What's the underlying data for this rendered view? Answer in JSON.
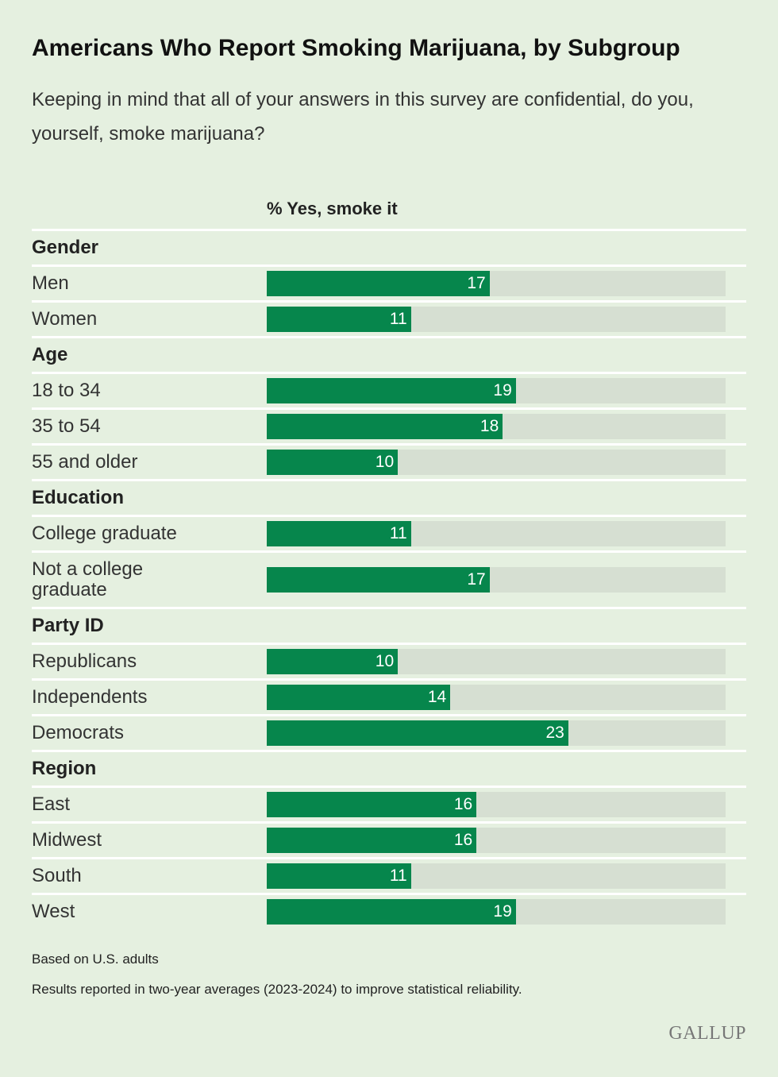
{
  "chart_data": {
    "type": "bar",
    "title": "Americans Who Report Smoking Marijuana, by Subgroup",
    "subtitle": "Keeping in mind that all of your answers in this survey are confidential, do you, yourself, smoke marijuana?",
    "column_label": "% Yes, smoke it",
    "bar_color": "#06864c",
    "track_color": "#d6dfd2",
    "xlim": [
      0,
      35
    ],
    "groups": [
      {
        "name": "Gender",
        "categories": [
          "Men",
          "Women"
        ],
        "values": [
          17,
          11
        ]
      },
      {
        "name": "Age",
        "categories": [
          "18 to 34",
          "35 to 54",
          "55 and older"
        ],
        "values": [
          19,
          18,
          10
        ]
      },
      {
        "name": "Education",
        "categories": [
          "College graduate",
          "Not a college graduate"
        ],
        "values": [
          11,
          17
        ]
      },
      {
        "name": "Party ID",
        "categories": [
          "Republicans",
          "Independents",
          "Democrats"
        ],
        "values": [
          10,
          14,
          23
        ]
      },
      {
        "name": "Region",
        "categories": [
          "East",
          "Midwest",
          "South",
          "West"
        ],
        "values": [
          16,
          16,
          11,
          19
        ]
      }
    ],
    "notes": [
      "Based on U.S. adults",
      "Results reported in two-year averages (2023-2024) to improve statistical reliability."
    ],
    "logo": "GALLUP"
  }
}
